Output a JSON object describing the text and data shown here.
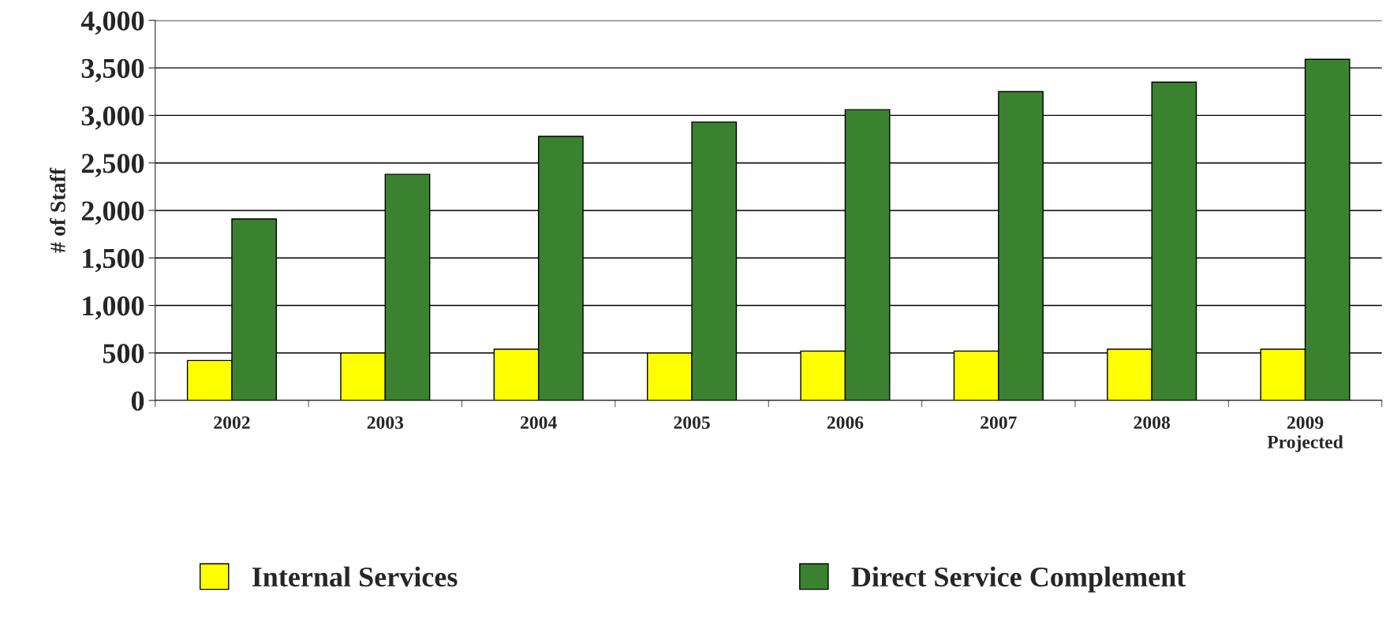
{
  "chart_data": {
    "type": "bar",
    "ylabel": "# of Staff",
    "categories": [
      "2002",
      "2003",
      "2004",
      "2005",
      "2006",
      "2007",
      "2008",
      "2009\nProjected"
    ],
    "series": [
      {
        "name": "Internal Services",
        "color": "#ffff00",
        "values": [
          420,
          500,
          540,
          500,
          520,
          520,
          540,
          540
        ]
      },
      {
        "name": "Direct Service Complement",
        "color": "#3a8230",
        "values": [
          1910,
          2380,
          2780,
          2930,
          3060,
          3250,
          3350,
          3590
        ]
      }
    ],
    "ylim": [
      0,
      4000
    ],
    "yticks": [
      {
        "value": 0,
        "label": "0"
      },
      {
        "value": 500,
        "label": "500"
      },
      {
        "value": 1000,
        "label": "1,000"
      },
      {
        "value": 1500,
        "label": "1,500"
      },
      {
        "value": 2000,
        "label": "2,000"
      },
      {
        "value": 2500,
        "label": "2,500"
      },
      {
        "value": 3000,
        "label": "3,000"
      },
      {
        "value": 3500,
        "label": "3,500"
      },
      {
        "value": 4000,
        "label": "4,000"
      }
    ],
    "grid": "y",
    "legend": "bottom"
  }
}
